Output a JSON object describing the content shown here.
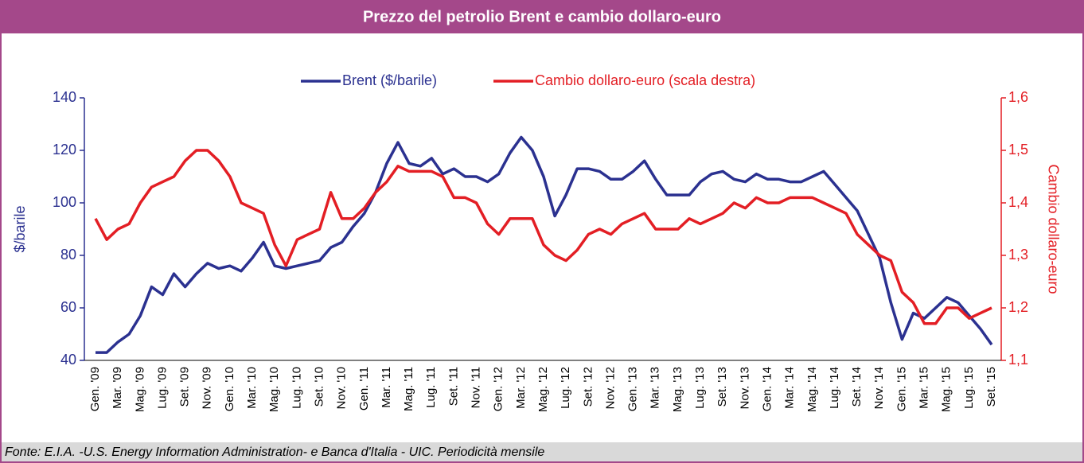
{
  "chart_data": {
    "type": "line",
    "title": "Prezzo del petrolio Brent e cambio dollaro-euro",
    "source": "Fonte: E.I.A. -U.S. Energy Information Administration- e Banca d'Italia - UIC. Periodicità mensile",
    "ylabel": "$/barile",
    "y2label": "Cambio dollaro-euro",
    "categories": [
      "Gen. '09",
      null,
      "Mar. '09",
      null,
      "Mag. '09",
      null,
      "Lug. '09",
      null,
      "Set. '09",
      null,
      "Nov. '09",
      null,
      "Gen. '10",
      null,
      "Mar. '10",
      null,
      "Mag. '10",
      null,
      "Lug. '10",
      null,
      "Set. '10",
      null,
      "Nov. '10",
      null,
      "Gen. '11",
      null,
      "Mar. '11",
      null,
      "Mag. '11",
      null,
      "Lug. '11",
      null,
      "Set. '11",
      null,
      "Nov. '11",
      null,
      "Gen. '12",
      null,
      "Mar. '12",
      null,
      "Mag. '12",
      null,
      "Lug. '12",
      null,
      "Set. '12",
      null,
      "Nov. '12",
      null,
      "Gen. '13",
      null,
      "Mar. '13",
      null,
      "Mag. '13",
      null,
      "Lug. '13",
      null,
      "Set. '13",
      null,
      "Nov. '13",
      null,
      "Gen. '14",
      null,
      "Mar. '14",
      null,
      "Mag. '14",
      null,
      "Lug. '14",
      null,
      "Set. '14",
      null,
      "Nov. '14",
      null,
      "Gen. '15",
      null,
      "Mar. '15",
      null,
      "Mag. '15",
      null,
      "Lug. '15",
      null,
      "Set. '15"
    ],
    "series": [
      {
        "name": "Brent ($/barile)",
        "color": "#2b3190",
        "values": [
          43,
          43,
          47,
          50,
          57,
          68,
          65,
          73,
          68,
          73,
          77,
          75,
          76,
          74,
          79,
          85,
          76,
          75,
          76,
          77,
          78,
          83,
          85,
          91,
          96,
          104,
          115,
          123,
          115,
          114,
          117,
          111,
          113,
          110,
          110,
          108,
          111,
          119,
          125,
          120,
          110,
          95,
          103,
          113,
          113,
          112,
          109,
          109,
          112,
          116,
          109,
          103,
          103,
          103,
          108,
          111,
          112,
          109,
          108,
          111,
          109,
          109,
          108,
          108,
          110,
          112,
          107,
          102,
          97,
          88,
          79,
          62,
          48,
          58,
          56,
          60,
          64,
          62,
          57,
          52,
          46
        ]
      },
      {
        "name": "Cambio dollaro-euro (scala destra)",
        "color": "#e31e24",
        "axis": "y2",
        "values": [
          1.37,
          1.33,
          1.35,
          1.36,
          1.4,
          1.43,
          1.44,
          1.45,
          1.48,
          1.5,
          1.5,
          1.48,
          1.45,
          1.4,
          1.39,
          1.38,
          1.32,
          1.28,
          1.33,
          1.34,
          1.35,
          1.42,
          1.37,
          1.37,
          1.39,
          1.42,
          1.44,
          1.47,
          1.46,
          1.46,
          1.46,
          1.45,
          1.41,
          1.41,
          1.4,
          1.36,
          1.34,
          1.37,
          1.37,
          1.37,
          1.32,
          1.3,
          1.29,
          1.31,
          1.34,
          1.35,
          1.34,
          1.36,
          1.37,
          1.38,
          1.35,
          1.35,
          1.35,
          1.37,
          1.36,
          1.37,
          1.38,
          1.4,
          1.39,
          1.41,
          1.4,
          1.4,
          1.41,
          1.41,
          1.41,
          1.4,
          1.39,
          1.38,
          1.34,
          1.32,
          1.3,
          1.29,
          1.23,
          1.21,
          1.17,
          1.17,
          1.2,
          1.2,
          1.18,
          1.19,
          1.2
        ]
      }
    ],
    "ylim": [
      40,
      140
    ],
    "yticks": [
      40,
      60,
      80,
      100,
      120,
      140
    ],
    "y2lim": [
      1.1,
      1.6
    ],
    "y2ticks": [
      {
        "value": 1.1,
        "label": "1,1"
      },
      {
        "value": 1.2,
        "label": "1,2"
      },
      {
        "value": 1.3,
        "label": "1,3"
      },
      {
        "value": 1.4,
        "label": "1,4"
      },
      {
        "value": 1.5,
        "label": "1,5"
      },
      {
        "value": 1.6,
        "label": "1,6"
      }
    ],
    "legend": "top"
  }
}
